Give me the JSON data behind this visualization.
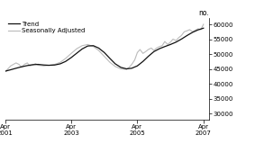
{
  "ylabel_right": "no.",
  "xlim_start": 2001.25,
  "xlim_end": 2007.42,
  "ylim": [
    28000,
    62000
  ],
  "yticks": [
    30000,
    35000,
    40000,
    45000,
    50000,
    55000,
    60000
  ],
  "xtick_positions": [
    2001.25,
    2003.25,
    2005.25,
    2007.25
  ],
  "xtick_labels": [
    "Apr\n2001",
    "Apr\n2003",
    "Apr\n2005",
    "Apr\n2007"
  ],
  "trend_color": "#111111",
  "sa_color": "#bbbbbb",
  "legend_trend": "Trend",
  "legend_sa": "Seasonally Adjusted",
  "background_color": "#ffffff",
  "trend_data": [
    [
      2001.25,
      44200
    ],
    [
      2001.42,
      44700
    ],
    [
      2001.58,
      45200
    ],
    [
      2001.75,
      45700
    ],
    [
      2001.92,
      46100
    ],
    [
      2002.08,
      46400
    ],
    [
      2002.25,
      46500
    ],
    [
      2002.42,
      46300
    ],
    [
      2002.58,
      46200
    ],
    [
      2002.75,
      46300
    ],
    [
      2002.92,
      46700
    ],
    [
      2003.08,
      47500
    ],
    [
      2003.25,
      48800
    ],
    [
      2003.42,
      50300
    ],
    [
      2003.58,
      51700
    ],
    [
      2003.75,
      52700
    ],
    [
      2003.92,
      52800
    ],
    [
      2004.08,
      52000
    ],
    [
      2004.25,
      50500
    ],
    [
      2004.42,
      48500
    ],
    [
      2004.58,
      46700
    ],
    [
      2004.75,
      45500
    ],
    [
      2004.92,
      45000
    ],
    [
      2005.08,
      45200
    ],
    [
      2005.25,
      46000
    ],
    [
      2005.42,
      47500
    ],
    [
      2005.58,
      49200
    ],
    [
      2005.75,
      50800
    ],
    [
      2005.92,
      51800
    ],
    [
      2006.08,
      52500
    ],
    [
      2006.25,
      53200
    ],
    [
      2006.42,
      54000
    ],
    [
      2006.58,
      55000
    ],
    [
      2006.75,
      56200
    ],
    [
      2006.92,
      57300
    ],
    [
      2007.08,
      58100
    ],
    [
      2007.25,
      58700
    ]
  ],
  "sa_data": [
    [
      2001.25,
      44000
    ],
    [
      2001.42,
      46000
    ],
    [
      2001.58,
      47000
    ],
    [
      2001.67,
      46500
    ],
    [
      2001.75,
      45500
    ],
    [
      2001.83,
      46500
    ],
    [
      2001.92,
      47000
    ],
    [
      2002.0,
      46000
    ],
    [
      2002.08,
      46200
    ],
    [
      2002.17,
      46800
    ],
    [
      2002.25,
      46200
    ],
    [
      2002.42,
      46000
    ],
    [
      2002.58,
      46200
    ],
    [
      2002.75,
      46500
    ],
    [
      2002.92,
      47200
    ],
    [
      2003.08,
      48500
    ],
    [
      2003.25,
      50200
    ],
    [
      2003.42,
      51800
    ],
    [
      2003.58,
      52800
    ],
    [
      2003.75,
      53200
    ],
    [
      2003.92,
      52500
    ],
    [
      2004.08,
      51200
    ],
    [
      2004.25,
      49200
    ],
    [
      2004.42,
      47200
    ],
    [
      2004.58,
      45800
    ],
    [
      2004.75,
      45000
    ],
    [
      2004.92,
      44800
    ],
    [
      2005.0,
      45500
    ],
    [
      2005.08,
      46500
    ],
    [
      2005.17,
      48000
    ],
    [
      2005.25,
      50500
    ],
    [
      2005.33,
      51500
    ],
    [
      2005.42,
      50200
    ],
    [
      2005.5,
      50800
    ],
    [
      2005.58,
      51500
    ],
    [
      2005.67,
      52000
    ],
    [
      2005.75,
      51200
    ],
    [
      2005.83,
      52000
    ],
    [
      2005.92,
      52500
    ],
    [
      2006.0,
      52800
    ],
    [
      2006.08,
      54200
    ],
    [
      2006.17,
      53200
    ],
    [
      2006.25,
      54000
    ],
    [
      2006.33,
      55000
    ],
    [
      2006.42,
      54500
    ],
    [
      2006.5,
      55500
    ],
    [
      2006.58,
      56200
    ],
    [
      2006.67,
      57500
    ],
    [
      2006.75,
      57800
    ],
    [
      2006.83,
      58200
    ],
    [
      2006.92,
      57500
    ],
    [
      2007.0,
      58000
    ],
    [
      2007.08,
      58500
    ],
    [
      2007.17,
      58200
    ],
    [
      2007.25,
      60000
    ]
  ]
}
